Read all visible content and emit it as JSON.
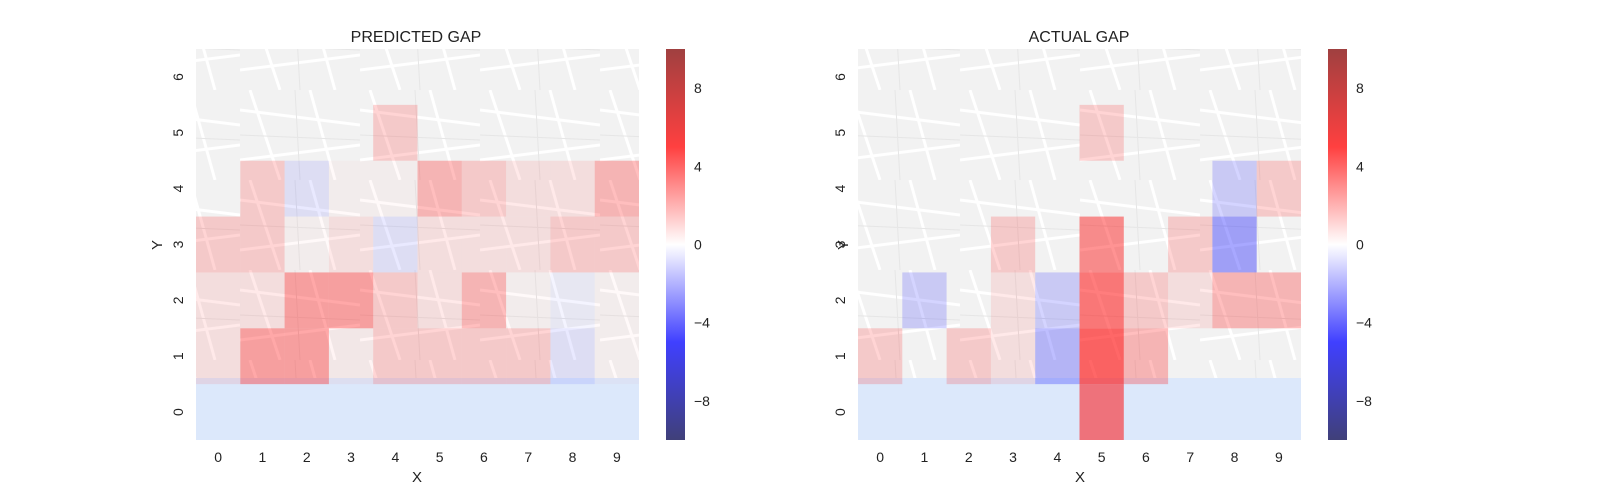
{
  "chart_data": [
    {
      "type": "heatmap",
      "title": "PREDICTED GAP",
      "xlabel": "X",
      "ylabel": "Y",
      "x_ticks": [
        "0",
        "1",
        "2",
        "3",
        "4",
        "5",
        "6",
        "7",
        "8",
        "9"
      ],
      "y_ticks": [
        "0",
        "1",
        "2",
        "3",
        "4",
        "5",
        "6"
      ],
      "colorbar": {
        "range": [
          -10,
          10
        ],
        "ticks": [
          "8",
          "4",
          "0",
          "−4",
          "−8"
        ],
        "tick_values": [
          8,
          4,
          0,
          -4,
          -8
        ],
        "colormap": "seismic"
      },
      "background": "street map",
      "z_rows_top_to_bottom": [
        [
          0,
          0,
          0,
          0,
          0,
          0,
          0,
          0,
          0,
          0
        ],
        [
          0,
          0,
          0,
          0,
          2,
          0,
          0,
          0,
          0,
          0
        ],
        [
          0,
          2,
          -1,
          0.3,
          0.3,
          3,
          2,
          1,
          1,
          3
        ],
        [
          2,
          2,
          0.3,
          1,
          -1,
          1,
          1,
          1,
          2,
          2
        ],
        [
          1,
          1,
          4,
          4,
          2,
          1,
          3,
          0.3,
          -0.5,
          0.3
        ],
        [
          1,
          4,
          4,
          0.5,
          2,
          2,
          2,
          2,
          -1,
          0.3
        ],
        [
          0,
          0,
          0,
          0,
          0,
          0,
          0,
          0,
          0,
          0
        ]
      ]
    },
    {
      "type": "heatmap",
      "title": "ACTUAL GAP",
      "xlabel": "X",
      "ylabel": "Y",
      "x_ticks": [
        "0",
        "1",
        "2",
        "3",
        "4",
        "5",
        "6",
        "7",
        "8",
        "9"
      ],
      "y_ticks": [
        "0",
        "1",
        "2",
        "3",
        "4",
        "5",
        "6"
      ],
      "colorbar": {
        "range": [
          -10,
          10
        ],
        "ticks": [
          "8",
          "4",
          "0",
          "−4",
          "−8"
        ],
        "tick_values": [
          8,
          4,
          0,
          -4,
          -8
        ],
        "colormap": "seismic"
      },
      "background": "street map",
      "z_rows_top_to_bottom": [
        [
          0,
          0,
          0,
          0,
          0,
          0,
          0,
          0,
          0,
          0
        ],
        [
          0,
          0,
          0,
          0,
          0,
          2,
          0,
          0,
          0,
          0
        ],
        [
          0,
          0,
          0,
          0,
          0,
          0,
          0,
          0,
          -2,
          2
        ],
        [
          0,
          0,
          0,
          2,
          0,
          5,
          0,
          2,
          -4,
          0
        ],
        [
          0,
          -2,
          0,
          1,
          -2,
          6,
          2,
          1,
          3,
          3
        ],
        [
          2,
          0,
          2,
          1,
          -3,
          7,
          3,
          0,
          0,
          0
        ],
        [
          0,
          0,
          0,
          0,
          0,
          6,
          0,
          0,
          0,
          0
        ]
      ]
    }
  ]
}
